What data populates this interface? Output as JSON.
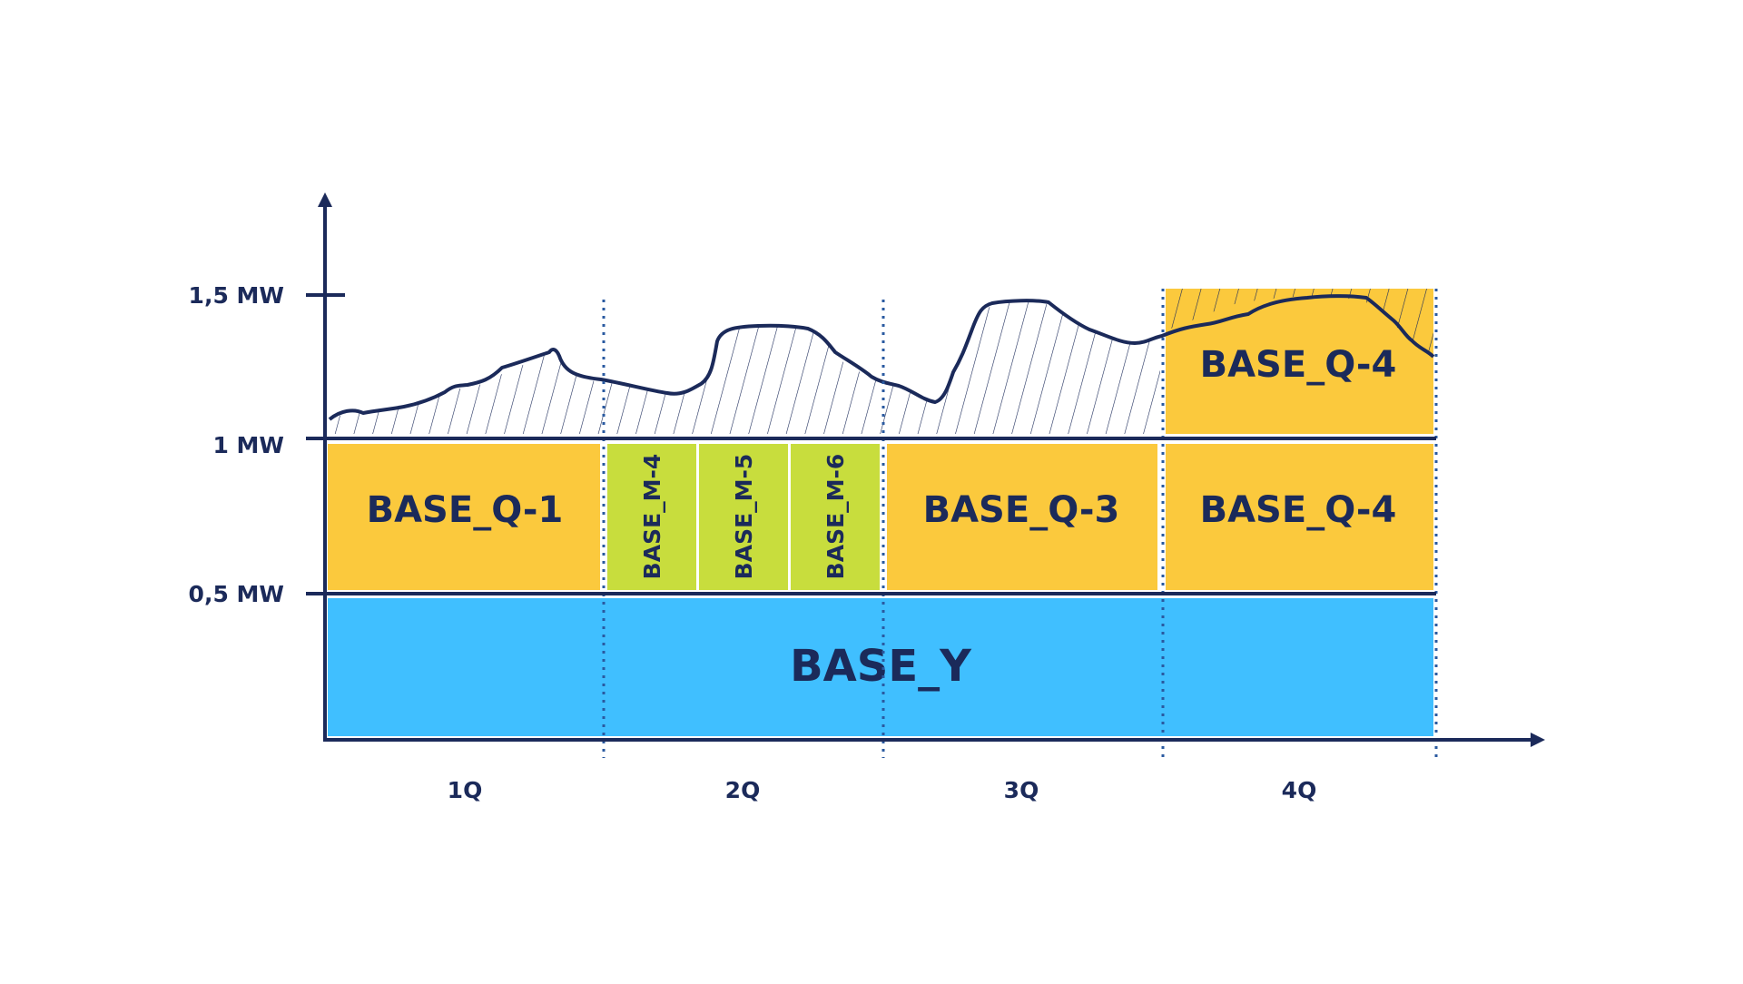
{
  "colors": {
    "navy": "#1b2a5a",
    "quarter": "#fbc93d",
    "month": "#c8dd3d",
    "year": "#40bfff",
    "guide": "#2a5aa0"
  },
  "y_axis": {
    "ticks": [
      {
        "label": "1,5 MW",
        "value": 1.5
      },
      {
        "label": "1 MW",
        "value": 1.0
      },
      {
        "label": "0,5 MW",
        "value": 0.5
      }
    ]
  },
  "x_axis": {
    "quarters": [
      "1Q",
      "2Q",
      "3Q",
      "4Q"
    ]
  },
  "blocks": {
    "year": {
      "label": "BASE_Y",
      "from": 0.0,
      "to": 0.5
    },
    "q1": {
      "label": "BASE_Q-1",
      "from": 0.5,
      "to": 1.0
    },
    "months": [
      {
        "label": "BASE_M-4"
      },
      {
        "label": "BASE_M-5"
      },
      {
        "label": "BASE_M-6"
      }
    ],
    "q3": {
      "label": "BASE_Q-3",
      "from": 0.5,
      "to": 1.0
    },
    "q4_lower": {
      "label": "BASE_Q-4",
      "from": 0.5,
      "to": 1.0
    },
    "q4_upper": {
      "label": "BASE_Q-4",
      "from": 1.0,
      "to": 1.5
    }
  },
  "load_curve": {
    "description_values_MW": [
      1.06,
      1.1,
      1.11,
      1.12,
      1.14,
      1.18,
      1.25,
      1.31,
      1.22,
      1.18,
      1.15,
      1.22,
      1.38,
      1.39,
      1.33,
      1.21,
      1.15,
      1.25,
      1.46,
      1.46,
      1.38,
      1.33,
      1.36,
      1.4,
      1.48,
      1.5,
      1.43,
      1.3
    ]
  }
}
